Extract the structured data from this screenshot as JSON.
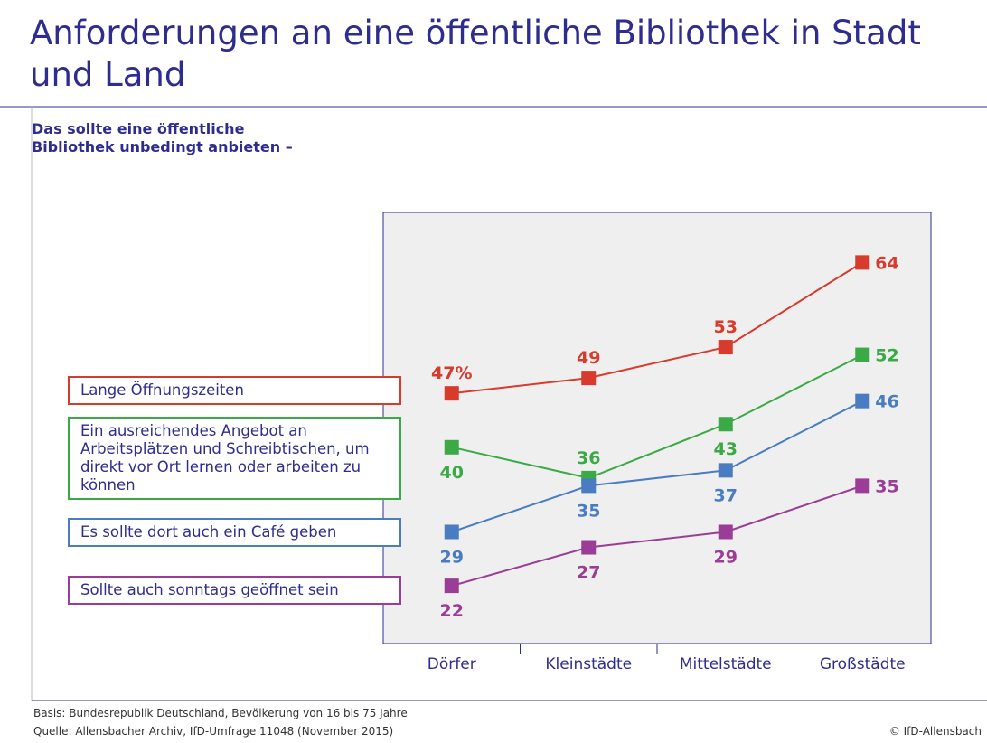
{
  "chart_data": {
    "type": "line",
    "title": "Anforderungen an eine öffentliche Bibliothek in Stadt und Land",
    "subtitle": "Das sollte eine öffentliche Bibliothek unbedingt anbieten –",
    "categories": [
      "Dörfer",
      "Kleinstädte",
      "Mittelstädte",
      "Großstädte"
    ],
    "ylim": [
      14.5,
      70.5
    ],
    "series": [
      {
        "name": "Lange Öffnungszeiten",
        "color": "#d83a2c",
        "values": [
          47,
          49,
          53,
          64
        ],
        "value_labels": [
          "47%",
          "49",
          "53",
          "64"
        ]
      },
      {
        "name": "Ein ausreichendes Angebot an Arbeitsplätzen und Schreibtischen, um direkt vor Ort lernen oder arbeiten zu können",
        "color": "#3aa946",
        "values": [
          40,
          36,
          43,
          52
        ]
      },
      {
        "name": "Es sollte dort auch ein Café geben",
        "color": "#4a7cc1",
        "values": [
          29,
          35,
          37,
          46
        ]
      },
      {
        "name": "Sollte auch sonntags geöffnet sein",
        "color": "#9b3d97",
        "values": [
          22,
          27,
          29,
          35
        ]
      }
    ],
    "notes": [
      "Basis: Bundesrepublik Deutschland, Bevölkerung von 16 bis 75 Jahre",
      "Quelle: Allensbacher Archiv, IfD-Umfrage 11048 (November 2015)"
    ],
    "copyright": "© IfD-Allensbach"
  }
}
